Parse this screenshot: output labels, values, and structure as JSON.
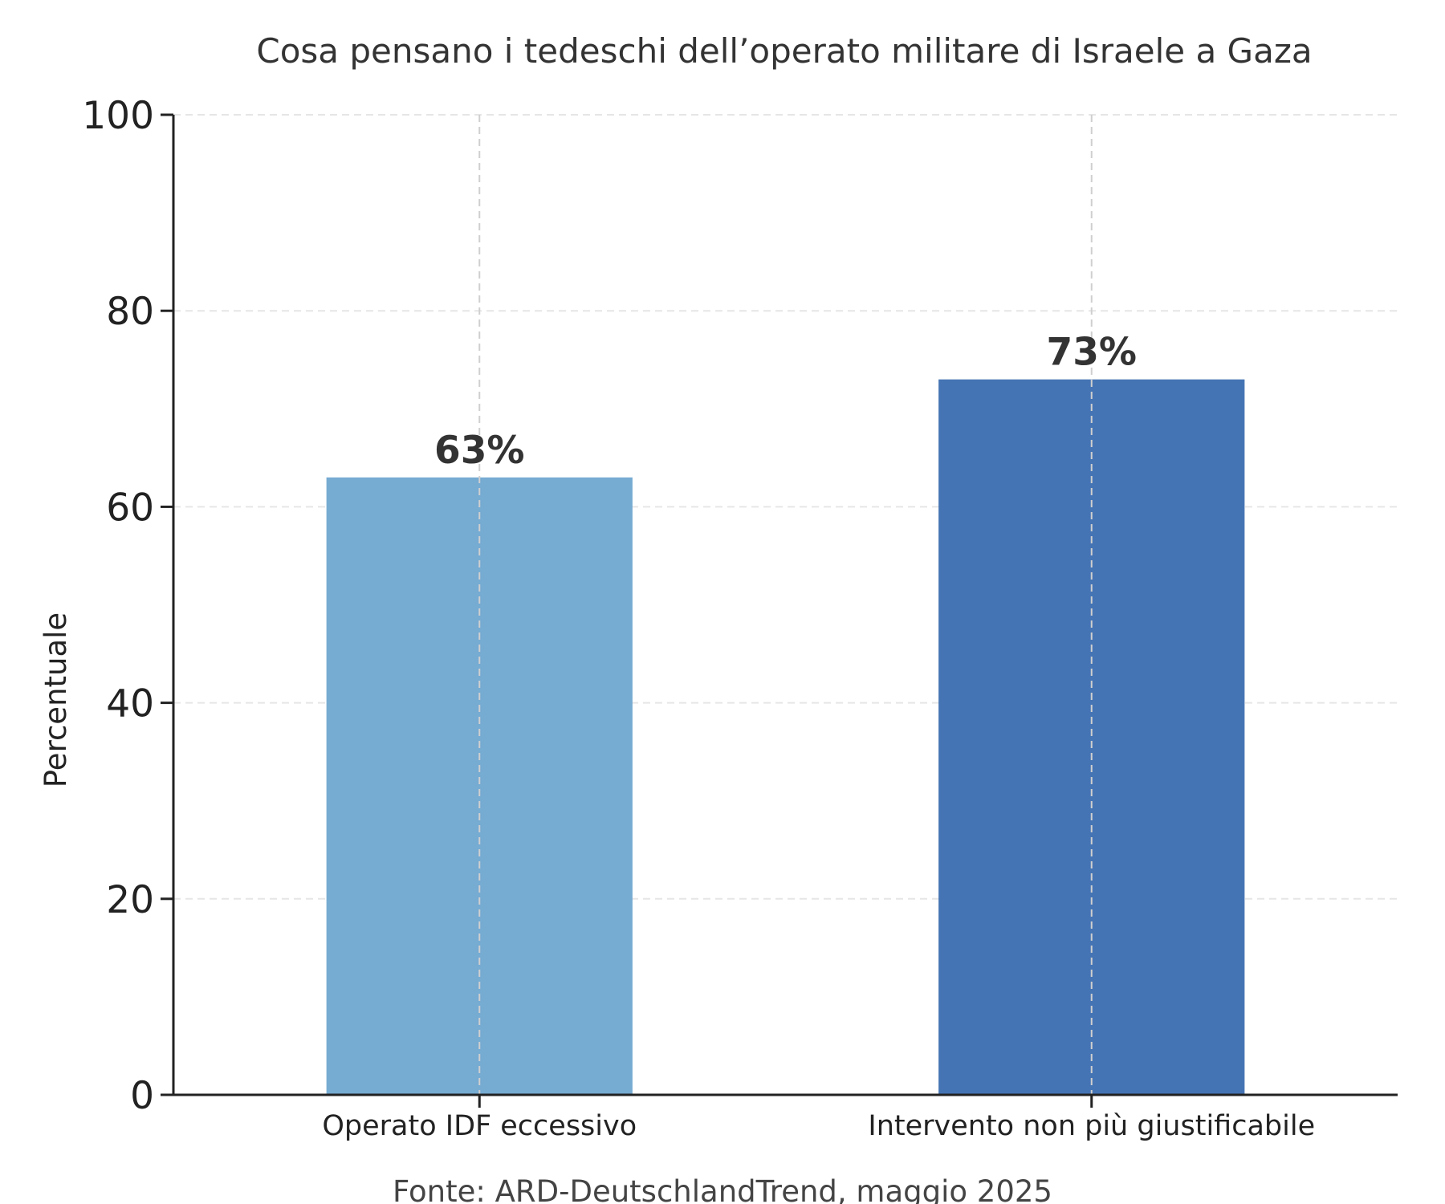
{
  "chart_data": {
    "type": "bar",
    "title": "Cosa pensano i tedeschi dell’operato militare di Israele a Gaza",
    "xlabel": "",
    "ylabel": "Percentuale",
    "categories": [
      "Operato IDF eccessivo",
      "Intervento non più giustificabile"
    ],
    "values": [
      63,
      73
    ],
    "data_labels": [
      "63%",
      "73%"
    ],
    "bar_colors": [
      "#76abd2",
      "#4574b4"
    ],
    "ylim": [
      0,
      100
    ],
    "yticks": [
      0,
      20,
      40,
      60,
      80,
      100
    ],
    "grid": true,
    "source": "Fonte: ARD-DeutschlandTrend, maggio 2025"
  }
}
